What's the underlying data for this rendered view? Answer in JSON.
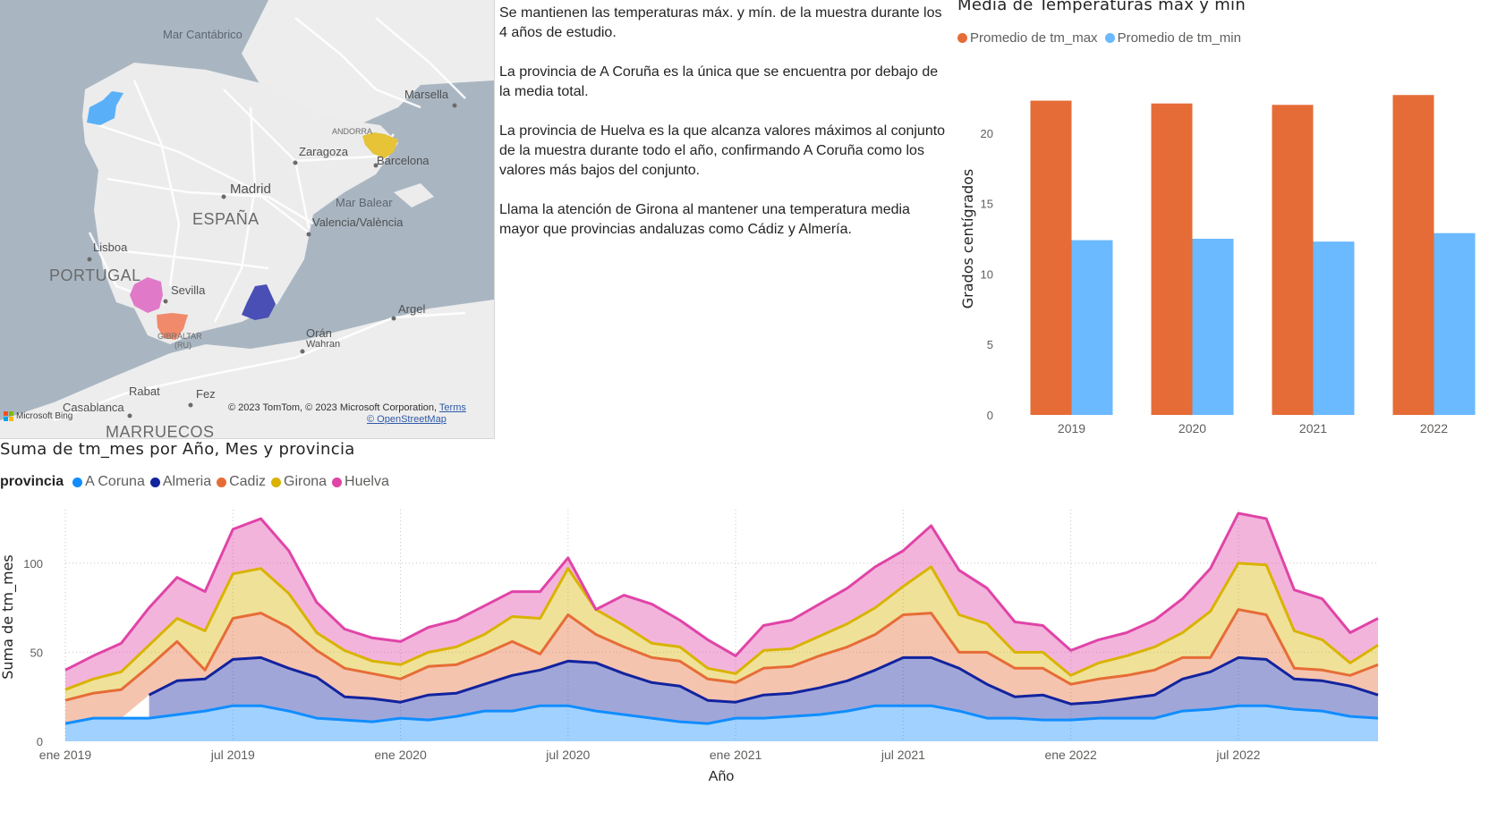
{
  "map": {
    "labels": {
      "mar_cantabrico": "Mar Cantábrico",
      "marsella": "Marsella",
      "andorra": "ANDORRA",
      "zaragoza": "Zaragoza",
      "barcelona": "Barcelona",
      "madrid": "Madrid",
      "espana": "ESPAÑA",
      "mar_balear": "Mar Balear",
      "valencia": "Valencia/València",
      "lisboa": "Lisboa",
      "portugal": "PORTUGAL",
      "sevilla": "Sevilla",
      "gibraltar": "GIBRALTAR",
      "gibraltar_uk": "(RU)",
      "oran": "Orán",
      "wahran": "Wahran",
      "argel": "Argel",
      "rabat": "Rabat",
      "fez": "Fez",
      "casablanca": "Casablanca",
      "marruecos": "MARRUECOS"
    },
    "attribution": "© 2023 TomTom, © 2023 Microsoft Corporation,",
    "terms_link": "Terms",
    "osm_link": "© OpenStreetMap",
    "bing_logo": "Microsoft Bing",
    "province_colors": {
      "A Coruna": "#5ab0f8",
      "Almeria": "#4a4fb5",
      "Cadiz": "#f08a6a",
      "Girona": "#e6c337",
      "Huelva": "#e07ac8"
    }
  },
  "narrative": [
    "Se mantienen las temperaturas máx. y mín. de la muestra durante los 4 años de estudio.",
    "La provincia de A Coruña es la única que se encuentra por debajo de la media total.",
    "La provincia de Huelva es la que alcanza valores máximos al conjunto de la muestra durante todo el año, confirmando A Coruña como los valores más bajos del conjunto.",
    "Llama la atención de Girona al mantener una temperatura media mayor que provincias andaluzas como Cádiz y Almería."
  ],
  "bar_chart": {
    "title": "Media de Temperaturas max y min",
    "legend": [
      "Promedio de tm_max",
      "Promedio de tm_min"
    ],
    "colors": [
      "#e66c37",
      "#6bb9ff"
    ],
    "chart_data": {
      "type": "bar",
      "categories": [
        "2019",
        "2020",
        "2021",
        "2022"
      ],
      "series": [
        {
          "name": "Promedio de tm_max",
          "values": [
            22.3,
            22.1,
            22.0,
            22.7
          ]
        },
        {
          "name": "Promedio de tm_min",
          "values": [
            12.4,
            12.5,
            12.3,
            12.9
          ]
        }
      ],
      "ylabel": "Grados centígrados",
      "ylim": [
        0,
        25
      ],
      "yticks": [
        0,
        5,
        10,
        15,
        20
      ],
      "grid": false
    }
  },
  "area_chart": {
    "title": "Suma de tm_mes por Año, Mes y provincia",
    "legend_title": "provincia",
    "colors": {
      "A Coruna": "#118dff",
      "Almeria": "#12239e",
      "Cadiz": "#e66c37",
      "Girona": "#d9b300",
      "Huelva": "#e044a7"
    },
    "chart_data": {
      "type": "area",
      "stacked": true,
      "xlabel": "Año",
      "ylabel": "Suma de tm_mes",
      "ylim": [
        0,
        130
      ],
      "yticks": [
        0,
        50,
        100
      ],
      "xtick_labels": [
        "ene 2019",
        "jul 2019",
        "ene 2020",
        "jul 2020",
        "ene 2021",
        "jul 2021",
        "ene 2022",
        "jul 2022"
      ],
      "x": [
        "2019-01",
        "2019-02",
        "2019-03",
        "2019-04",
        "2019-05",
        "2019-06",
        "2019-07",
        "2019-08",
        "2019-09",
        "2019-10",
        "2019-11",
        "2019-12",
        "2020-01",
        "2020-02",
        "2020-03",
        "2020-04",
        "2020-05",
        "2020-06",
        "2020-07",
        "2020-08",
        "2020-09",
        "2020-10",
        "2020-11",
        "2020-12",
        "2021-01",
        "2021-02",
        "2021-03",
        "2021-04",
        "2021-05",
        "2021-06",
        "2021-07",
        "2021-08",
        "2021-09",
        "2021-10",
        "2021-11",
        "2021-12",
        "2022-01",
        "2022-02",
        "2022-03",
        "2022-04",
        "2022-05",
        "2022-06",
        "2022-07",
        "2022-08",
        "2022-09",
        "2022-10",
        "2022-11",
        "2022-12"
      ],
      "series": [
        {
          "name": "A Coruna",
          "values": [
            10,
            13,
            13,
            13,
            15,
            17,
            20,
            20,
            17,
            13,
            12,
            11,
            13,
            12,
            14,
            17,
            17,
            20,
            20,
            17,
            15,
            13,
            11,
            10,
            13,
            13,
            14,
            15,
            17,
            20,
            20,
            20,
            17,
            13,
            13,
            12,
            12,
            13,
            13,
            13,
            17,
            18,
            20,
            20,
            18,
            17,
            14,
            13
          ]
        },
        {
          "name": "Almeria",
          "values": [
            null,
            null,
            null,
            13,
            19,
            18,
            26,
            27,
            24,
            23,
            13,
            13,
            9,
            14,
            13,
            15,
            20,
            20,
            25,
            27,
            23,
            20,
            20,
            13,
            9,
            13,
            13,
            15,
            17,
            20,
            27,
            27,
            24,
            19,
            12,
            14,
            9,
            9,
            11,
            13,
            18,
            21,
            27,
            26,
            17,
            17,
            17,
            13
          ]
        },
        {
          "name": "Cadiz",
          "values": [
            13,
            14,
            16,
            16,
            22,
            5,
            23,
            25,
            23,
            15,
            16,
            14,
            13,
            16,
            16,
            17,
            19,
            9,
            26,
            16,
            15,
            14,
            14,
            12,
            11,
            15,
            15,
            18,
            19,
            20,
            24,
            25,
            9,
            18,
            16,
            15,
            11,
            13,
            13,
            14,
            12,
            8,
            27,
            25,
            6,
            6,
            6,
            17
          ]
        },
        {
          "name": "Girona",
          "values": [
            6,
            8,
            10,
            12,
            13,
            22,
            25,
            25,
            19,
            10,
            10,
            7,
            8,
            8,
            10,
            11,
            14,
            20,
            26,
            14,
            12,
            8,
            8,
            6,
            5,
            10,
            10,
            11,
            13,
            15,
            16,
            26,
            21,
            16,
            9,
            9,
            5,
            9,
            11,
            13,
            14,
            26,
            26,
            28,
            21,
            17,
            7,
            11
          ]
        },
        {
          "name": "Huelva",
          "values": [
            11,
            13,
            16,
            21,
            23,
            22,
            25,
            28,
            24,
            17,
            12,
            13,
            13,
            14,
            15,
            16,
            14,
            15,
            6,
            0,
            17,
            22,
            15,
            16,
            10,
            14,
            16,
            18,
            20,
            23,
            20,
            23,
            25,
            20,
            17,
            15,
            14,
            13,
            13,
            15,
            19,
            24,
            28,
            26,
            23,
            23,
            17,
            15
          ]
        }
      ]
    }
  }
}
